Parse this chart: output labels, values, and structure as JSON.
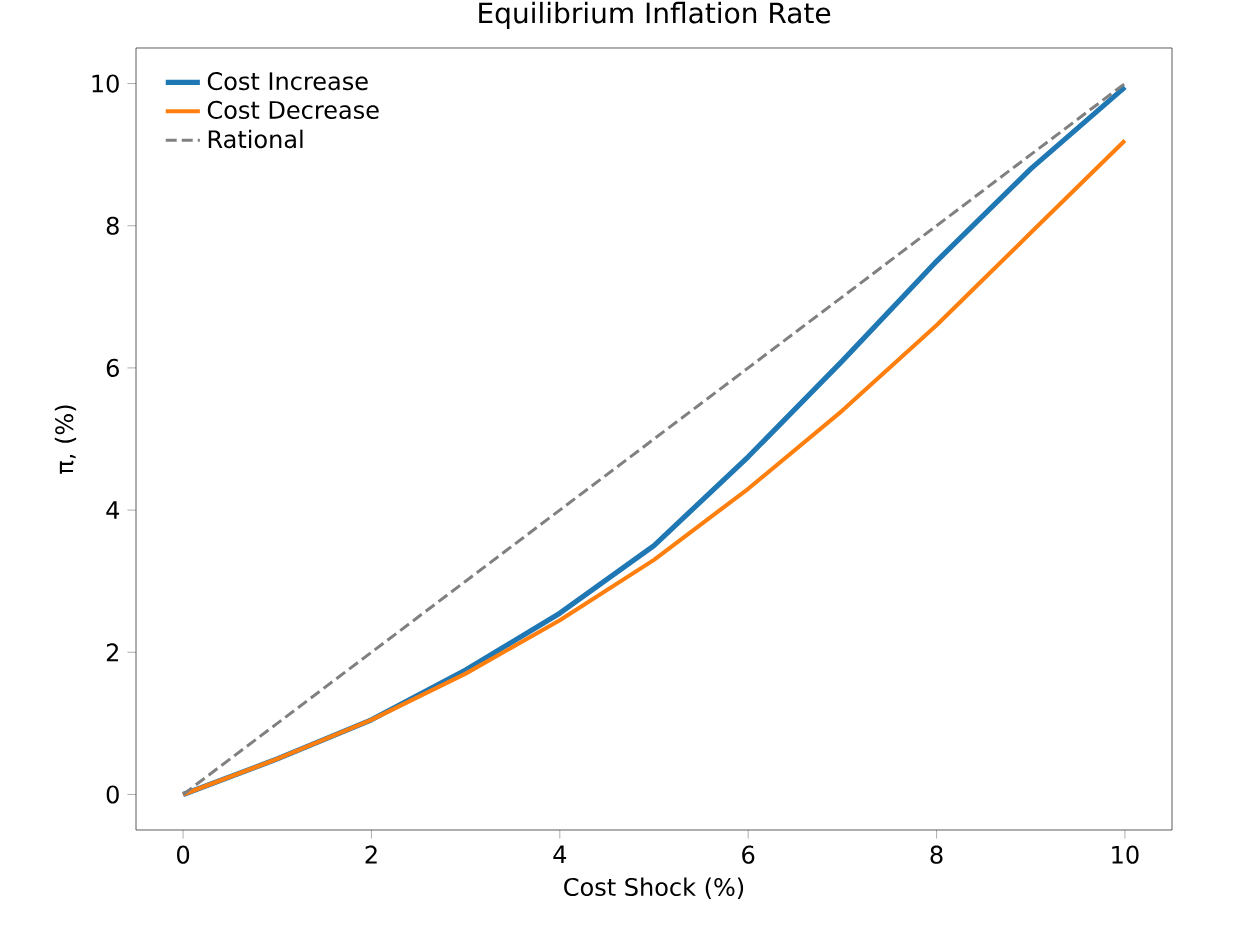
{
  "chart_data": {
    "type": "line",
    "title": "Equilibrium Inflation Rate",
    "xlabel": "Cost Shock (%)",
    "ylabel": "π, (%)",
    "xlim": [
      -0.5,
      10.5
    ],
    "ylim": [
      -0.5,
      10.5
    ],
    "xticks": [
      0,
      2,
      4,
      6,
      8,
      10
    ],
    "yticks": [
      0,
      2,
      4,
      6,
      8,
      10
    ],
    "x": [
      0,
      1,
      2,
      3,
      4,
      5,
      6,
      7,
      8,
      9,
      10
    ],
    "series": [
      {
        "name": "Cost Increase",
        "color": "#1f77b4",
        "line_style": "solid",
        "values": [
          0,
          0.5,
          1.05,
          1.75,
          2.55,
          3.5,
          4.75,
          6.1,
          7.5,
          8.8,
          9.95
        ]
      },
      {
        "name": "Cost Decrease",
        "color": "#ff7f0e",
        "line_style": "solid",
        "values": [
          0,
          0.5,
          1.05,
          1.7,
          2.45,
          3.3,
          4.3,
          5.4,
          6.6,
          7.9,
          9.2
        ]
      },
      {
        "name": "Rational",
        "color": "#808080",
        "line_style": "dashed",
        "values": [
          0,
          1,
          2,
          3,
          4,
          5,
          6,
          7,
          8,
          9,
          10
        ]
      }
    ],
    "legend": "top left",
    "grid": false
  }
}
